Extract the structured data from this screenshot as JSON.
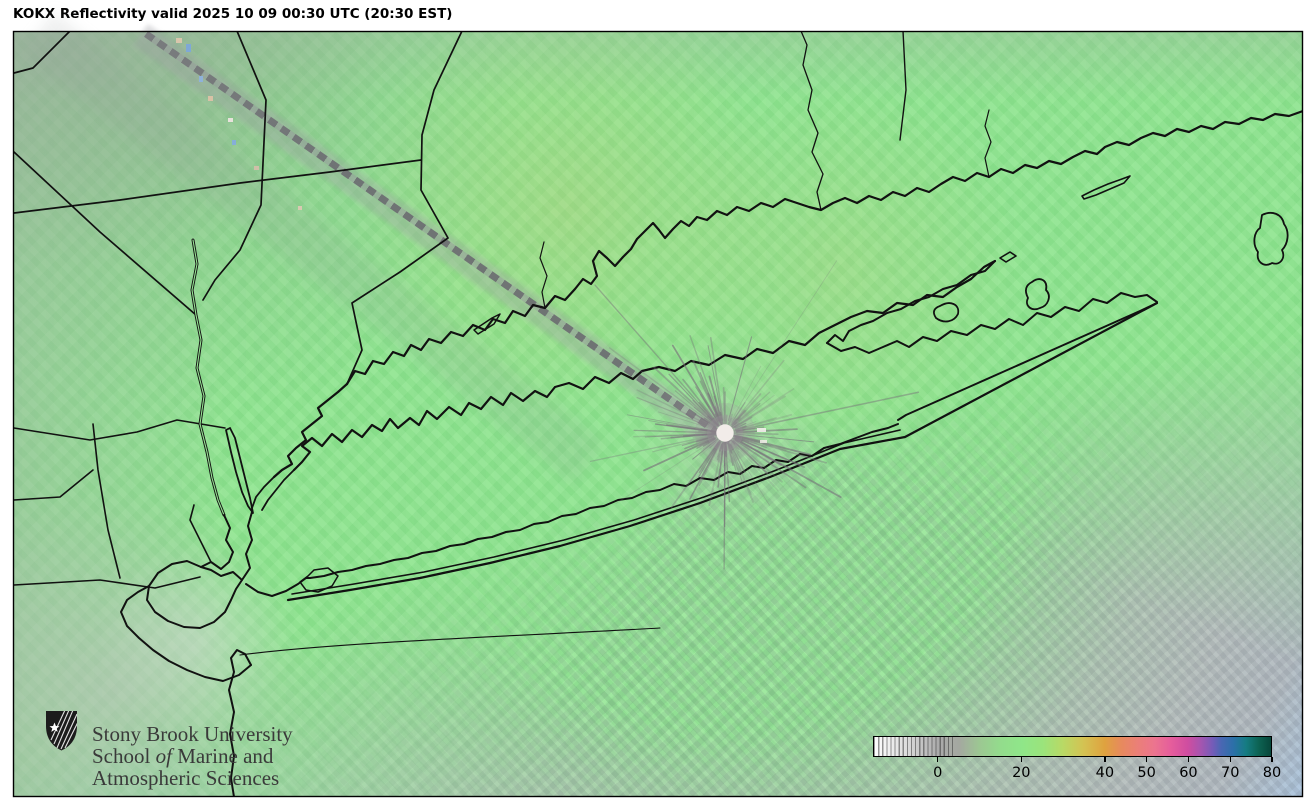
{
  "title": "KOKX Reflectivity valid 2025 10 09 00:30 UTC (20:30 EST)",
  "station": "KOKX",
  "logo": {
    "line1": "Stony Brook University",
    "line2_pre": "School ",
    "line2_italic": "of",
    "line2_post": " Marine and",
    "line3": "Atmospheric Sciences"
  },
  "colorbar": {
    "ticks": [
      0,
      20,
      40,
      50,
      60,
      70,
      80
    ],
    "range_min": -15.5,
    "range_max": 80,
    "stops": [
      {
        "v": -15.5,
        "c": "#ffffff"
      },
      {
        "v": -8,
        "c": "#dedede"
      },
      {
        "v": 0,
        "c": "#ababab"
      },
      {
        "v": 5,
        "c": "#a4a8a0"
      },
      {
        "v": 10,
        "c": "#9cc892"
      },
      {
        "v": 15,
        "c": "#93dc8c"
      },
      {
        "v": 20,
        "c": "#8fe689"
      },
      {
        "v": 25,
        "c": "#9ae47c"
      },
      {
        "v": 30,
        "c": "#b9d965"
      },
      {
        "v": 35,
        "c": "#d4c252"
      },
      {
        "v": 40,
        "c": "#dfa23f"
      },
      {
        "v": 44,
        "c": "#e78a5d"
      },
      {
        "v": 48,
        "c": "#eb7f78"
      },
      {
        "v": 52,
        "c": "#ec748f"
      },
      {
        "v": 56,
        "c": "#e55d9c"
      },
      {
        "v": 60,
        "c": "#cf4da0"
      },
      {
        "v": 63,
        "c": "#a755af"
      },
      {
        "v": 66,
        "c": "#745cb8"
      },
      {
        "v": 68,
        "c": "#4a67b3"
      },
      {
        "v": 71,
        "c": "#2b70a8"
      },
      {
        "v": 74,
        "c": "#157c82"
      },
      {
        "v": 77,
        "c": "#0d6353"
      },
      {
        "v": 80,
        "c": "#07463a"
      }
    ]
  },
  "colors": {
    "echo_green": "#8fe58f",
    "water_blue": "#a9c3dc",
    "coastline": "#111111",
    "radar_dot": "#f2ece9",
    "page_background": "#ffffff"
  }
}
